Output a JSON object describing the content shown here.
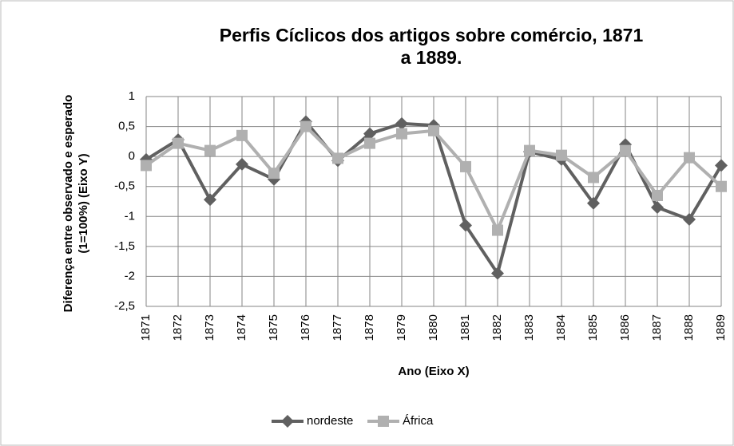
{
  "chart_data": {
    "type": "line",
    "title": "Perfis Cíclicos dos artigos sobre comércio, 1871 a 1889.",
    "xlabel": "Ano (Eixo X)",
    "ylabel": "Diferença entre observado e esperado (1=100%) (Eixo Y)",
    "categories": [
      "1871",
      "1872",
      "1873",
      "1874",
      "1875",
      "1876",
      "1877",
      "1878",
      "1879",
      "1880",
      "1881",
      "1882",
      "1883",
      "1884",
      "1885",
      "1886",
      "1887",
      "1888",
      "1889"
    ],
    "series": [
      {
        "name": "nordeste",
        "color": "#606060",
        "marker": "diamond",
        "values": [
          -0.05,
          0.28,
          -0.72,
          -0.13,
          -0.38,
          0.58,
          -0.07,
          0.38,
          0.55,
          0.52,
          -1.15,
          -1.95,
          0.08,
          -0.05,
          -0.78,
          0.2,
          -0.85,
          -1.05,
          -0.15
        ]
      },
      {
        "name": "África",
        "color": "#b0b0b0",
        "marker": "square",
        "values": [
          -0.15,
          0.22,
          0.1,
          0.35,
          -0.28,
          0.5,
          -0.03,
          0.22,
          0.38,
          0.43,
          -0.17,
          -1.23,
          0.1,
          0.02,
          -0.35,
          0.1,
          -0.65,
          -0.02,
          -0.5
        ]
      }
    ],
    "ylim": [
      -2.5,
      1
    ],
    "yticks": [
      {
        "value": -2.5,
        "label": "-2,5"
      },
      -2,
      {
        "value": -1.5,
        "label": "-1,5"
      },
      -1,
      {
        "value": -0.5,
        "label": "-0,5"
      },
      0,
      {
        "value": 0.5,
        "label": "0,5"
      },
      1
    ],
    "grid": true,
    "legend": "bottom"
  }
}
